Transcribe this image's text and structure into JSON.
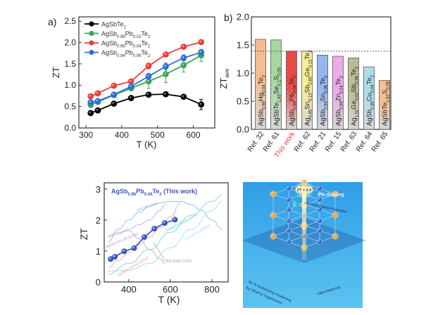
{
  "chart_data": [
    {
      "id": "a",
      "panel_label": "a)",
      "type": "line",
      "title": "",
      "xlabel": "T  (K)",
      "ylabel": "ZT",
      "xlim": [
        280,
        660
      ],
      "ylim": [
        0.0,
        2.6
      ],
      "xticks": [
        300,
        400,
        500,
        600
      ],
      "yticks": [
        0.0,
        0.5,
        1.0,
        1.5,
        2.0,
        2.5
      ],
      "ytick_labels": [
        "0.0",
        "0.5",
        "1.0",
        "1.5",
        "2.0",
        "2.5"
      ],
      "legend_position": "top-left",
      "x": [
        313,
        333,
        378,
        426,
        475,
        523,
        573,
        622
      ],
      "series": [
        {
          "name": "AgSbTe2",
          "legend": [
            "AgSbTe",
            "2",
            "",
            "",
            "",
            ""
          ],
          "color": "#000000",
          "values": [
            0.35,
            0.41,
            0.57,
            0.7,
            0.78,
            0.79,
            0.73,
            0.55
          ],
          "errors": [
            0,
            0,
            0,
            0,
            0,
            0,
            0,
            0.12
          ]
        },
        {
          "name": "AgSb0.98Pb0.02Te2",
          "legend": [
            "AgSb",
            "0.98",
            "Pb",
            "0.02",
            "Te",
            "2"
          ],
          "color": "#3aa55c",
          "values": [
            0.54,
            0.61,
            0.77,
            0.93,
            1.09,
            1.26,
            1.47,
            1.7
          ],
          "errors": [
            0,
            0,
            0,
            0.06,
            0.16,
            0.2,
            0.16,
            0.14
          ]
        },
        {
          "name": "AgSb0.96Pb0.04Te2",
          "legend": [
            "AgSb",
            "0.96",
            "Pb",
            "0.04",
            "Te",
            "2"
          ],
          "color": "#e8413c",
          "values": [
            0.74,
            0.81,
            0.99,
            1.09,
            1.45,
            1.72,
            1.9,
            2.01
          ],
          "errors": [
            0,
            0,
            0,
            0,
            0.07,
            0.05,
            0.04,
            0.03
          ]
        },
        {
          "name": "AgSb0.94Pb0.06Te2",
          "legend": [
            "AgSb",
            "0.94",
            "Pb",
            "0.06",
            "Te",
            "2"
          ],
          "color": "#2b6fd6",
          "values": [
            0.6,
            0.63,
            0.78,
            0.97,
            1.21,
            1.44,
            1.64,
            1.77
          ],
          "errors": [
            0,
            0,
            0,
            0,
            0.07,
            0.08,
            0.07,
            0.06
          ]
        }
      ]
    },
    {
      "id": "b",
      "panel_label": "b)",
      "type": "bar",
      "title": "",
      "xlabel": "",
      "ylabel": "ZT",
      "ylabel_sub": "ave",
      "ylim": [
        0.0,
        2.0
      ],
      "yticks": [
        0.0,
        0.5,
        1.0,
        1.5,
        2.0
      ],
      "ytick_labels": [
        "0.0",
        "0.5",
        "1.0",
        "1.5",
        "2.0"
      ],
      "reference_line": 1.39,
      "categories": [
        "Ref. 32",
        "Ref. 61",
        "This work",
        "Ref. 62",
        "Ref. 21",
        "Ref. 15",
        "Ref. 63",
        "Ref. 64",
        "Ref. 65"
      ],
      "highlight_category": "This work",
      "highlight_color": "#e8413c",
      "values": [
        1.6,
        1.59,
        1.39,
        1.39,
        1.32,
        1.3,
        1.27,
        1.11,
        0.87
      ],
      "colors": [
        "#f5b98a",
        "#9fd89a",
        "#e8413c",
        "#f7ef8f",
        "#8fb3ec",
        "#eea6ec",
        "#b8b891",
        "#a8dcea",
        "#f5bb8c"
      ],
      "bar_labels": [
        [
          "AgSb",
          "0.96",
          "Hg",
          "0.04",
          "Te",
          "2"
        ],
        [
          "AgSbTe",
          "1.85",
          "Se",
          "0.1",
          "S",
          "0.05"
        ],
        [
          "AgSb",
          "0.96",
          "Pb",
          "0.04",
          "Te",
          "2"
        ],
        [
          "Ag",
          "0.85",
          "Sn",
          "0.15",
          "Sb",
          "0.85",
          "Ge",
          "0.15",
          "Te",
          "2"
        ],
        [
          "AgSb",
          "0.94",
          "Sn",
          "0.06",
          "Te",
          "2"
        ],
        [
          "AgSb",
          "0.96",
          "Zn",
          "0.04",
          "Te",
          "2"
        ],
        [
          "Ag",
          "1.02",
          "Ge",
          "0.02",
          "Sb",
          "0.98",
          "Te",
          "2"
        ],
        [
          "AgSb",
          "0.96",
          "Cu",
          "0.04",
          "Te",
          "2"
        ],
        [
          "AgSbTe",
          "1.92",
          "S",
          "0.08"
        ]
      ]
    },
    {
      "id": "c",
      "panel_label": "",
      "type": "line",
      "title": "",
      "xlabel": "T (K)",
      "ylabel": "ZT",
      "xlim": [
        282,
        878
      ],
      "ylim": [
        0,
        3.2
      ],
      "xticks": [
        400,
        600,
        800
      ],
      "yticks": [
        0,
        1,
        2,
        3
      ],
      "ytick_labels": [
        "0",
        "1",
        "2",
        "3"
      ],
      "annotation": {
        "main": [
          "AgSb",
          "0.96",
          "Pb",
          "0.04",
          "Te",
          "2",
          " (This work)"
        ],
        "color": "#3b55c4"
      },
      "highlight_series": {
        "name": "AgSb0.96Pb0.04Te2 (This work)",
        "color": "#3b55c4",
        "x": [
          313,
          333,
          378,
          426,
          475,
          523,
          573,
          622
        ],
        "values": [
          0.74,
          0.81,
          0.99,
          1.09,
          1.45,
          1.72,
          1.9,
          2.01
        ]
      },
      "comparison_series": [
        {
          "name": "SnCa0.03Se",
          "label": "SnCa",
          "label_sub": "0.03",
          "label_tail": "Se",
          "color": "#82b8dc",
          "x": [
            300,
            350,
            400,
            450,
            500,
            550,
            600,
            650,
            700,
            750,
            800,
            850
          ],
          "values": [
            1.3,
            1.7,
            2.0,
            2.25,
            2.45,
            2.55,
            2.6,
            2.6,
            2.5,
            2.3,
            2.0,
            1.7
          ]
        },
        {
          "name": "AgSb0.96Cd0.04Te2",
          "label": "AgSb",
          "label_sub": "0.96",
          "label_tail": "Cd0.04Te2",
          "color": "#c79be8",
          "x": [
            300,
            350,
            400,
            450,
            500,
            550,
            575
          ],
          "values": [
            1.45,
            1.55,
            1.7,
            1.85,
            2.0,
            2.3,
            2.5
          ]
        },
        {
          "name": "AgSb0.94Sn0.06Te2",
          "label": "AgSb0.94Sn0.06Te2",
          "color": "#f0a0a0",
          "x": [
            300,
            350,
            400,
            450,
            500,
            550,
            600,
            650
          ],
          "values": [
            0.45,
            0.7,
            0.95,
            1.2,
            1.45,
            1.75,
            2.1,
            2.55
          ]
        },
        {
          "name": "PbNaTe-MgTe-GeTe",
          "label": "PbNaTe-MgTe-GeTe",
          "color": "#6fd6d6",
          "x": [
            300,
            400,
            500,
            600,
            700,
            800,
            850
          ],
          "values": [
            0.25,
            0.6,
            1.05,
            1.6,
            2.15,
            2.6,
            2.8
          ]
        },
        {
          "name": "Cu2Se-CuInSe2",
          "label": "Cu2Se-CuInSe2",
          "color": "#9cdcec",
          "x": [
            300,
            400,
            500,
            600,
            700,
            800,
            850
          ],
          "values": [
            0.35,
            0.38,
            0.6,
            1.1,
            1.7,
            2.3,
            2.6
          ]
        },
        {
          "name": "Bi0.5Sb1.5Te3",
          "label": "Bi0.5Sb1.5Te3",
          "color": "#b2b2ca",
          "x": [
            300,
            350,
            400,
            450,
            500,
            550,
            575
          ],
          "values": [
            1.5,
            1.6,
            1.65,
            1.4,
            1.05,
            0.75,
            0.6
          ]
        }
      ]
    }
  ],
  "illustration": {
    "title": "Pb-doping",
    "zt_badge": "ZT = 2.0",
    "labels": [
      "VB Convergence Promotion",
      "Sb-Te Antibonding Weakening",
      "Ag Vacancy Suppression",
      "VBM Flattening"
    ],
    "background_color": "#3aa6e8",
    "atom_colors": {
      "orange": "#f3a53b",
      "blue": "#2f6fd3",
      "purple": "#4b3a9c"
    }
  }
}
